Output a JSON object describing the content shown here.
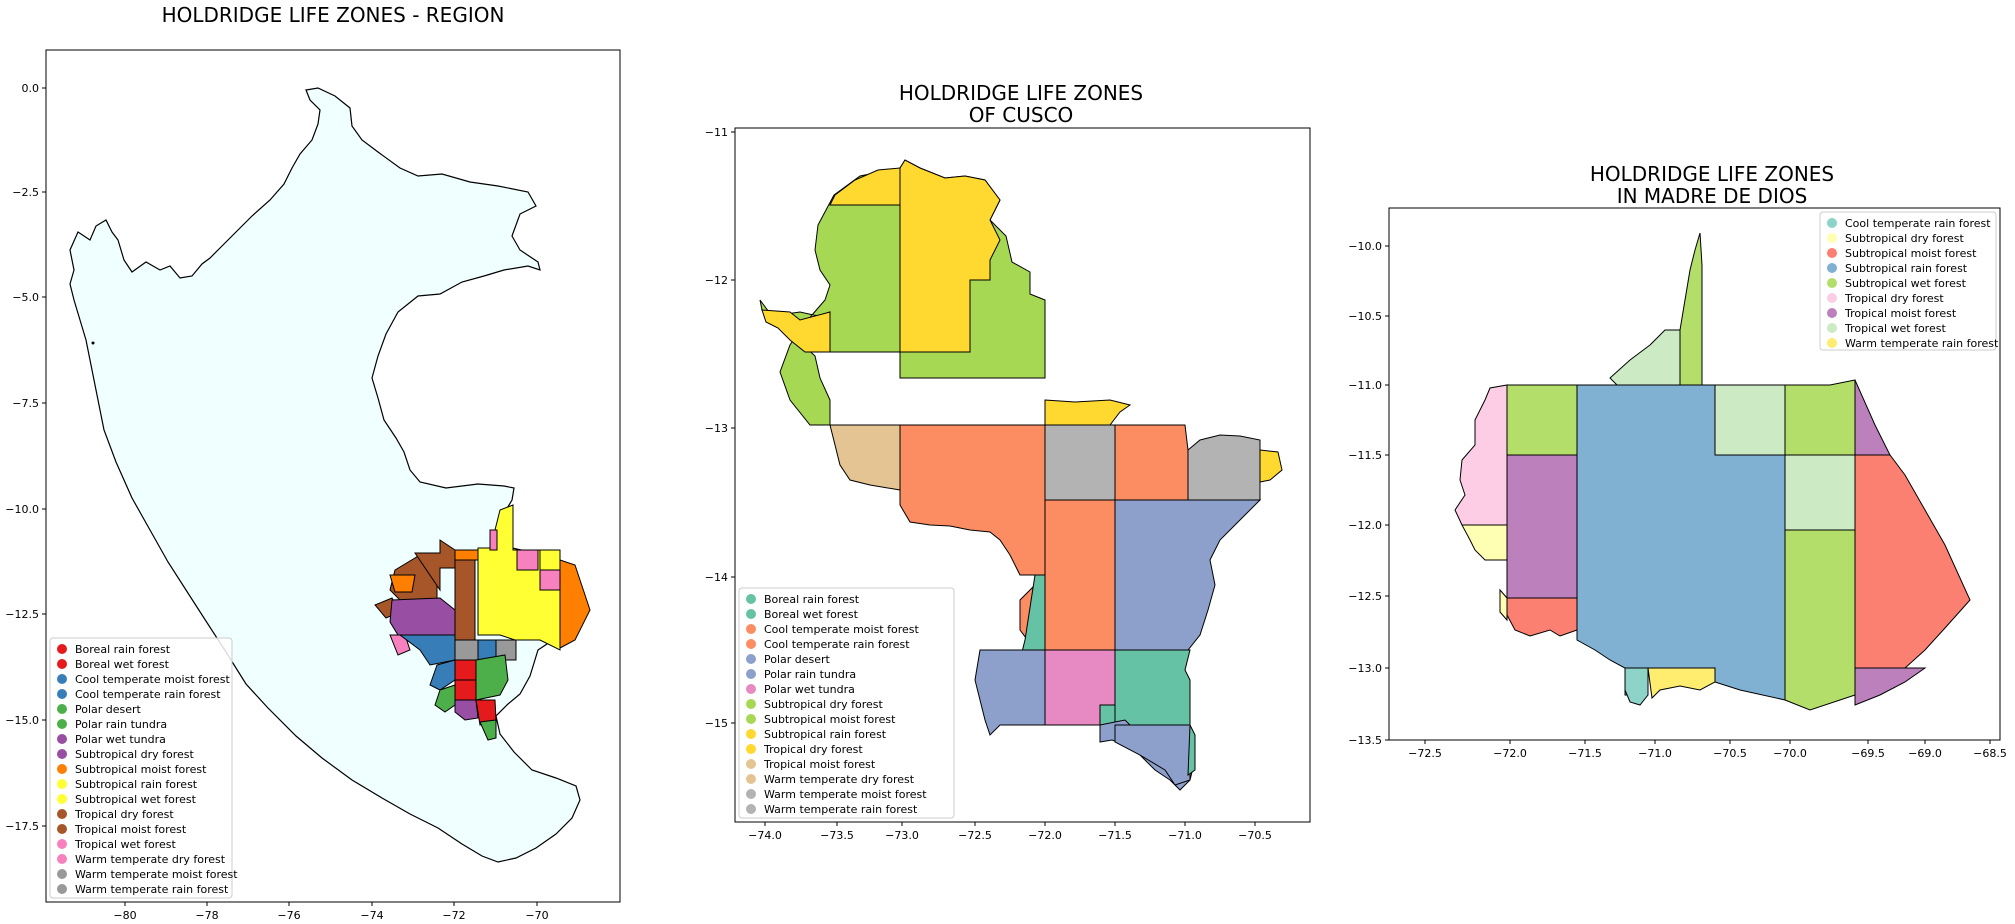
{
  "maps": [
    {
      "title_lines": [
        "HOLDRIDGE LIFE ZONES - REGION"
      ],
      "x_ticks": [
        "−80",
        "−78",
        "−76",
        "−74",
        "−72",
        "−70"
      ],
      "y_ticks": [
        "0.0",
        "−2.5",
        "−5.0",
        "−7.5",
        "−10.0",
        "−12.5",
        "−15.0",
        "−17.5"
      ],
      "legend": [
        {
          "label": "Boreal rain forest",
          "color": "#e41a1c"
        },
        {
          "label": "Boreal wet forest",
          "color": "#e41a1c"
        },
        {
          "label": "Cool temperate moist forest",
          "color": "#377eb8"
        },
        {
          "label": "Cool temperate rain forest",
          "color": "#377eb8"
        },
        {
          "label": "Polar desert",
          "color": "#4daf4a"
        },
        {
          "label": "Polar rain tundra",
          "color": "#4daf4a"
        },
        {
          "label": "Polar wet tundra",
          "color": "#984ea3"
        },
        {
          "label": "Subtropical dry forest",
          "color": "#984ea3"
        },
        {
          "label": "Subtropical moist forest",
          "color": "#ff7f00"
        },
        {
          "label": "Subtropical rain forest",
          "color": "#ffff33"
        },
        {
          "label": "Subtropical wet forest",
          "color": "#ffff33"
        },
        {
          "label": "Tropical dry forest",
          "color": "#a65628"
        },
        {
          "label": "Tropical moist forest",
          "color": "#a65628"
        },
        {
          "label": "Tropical wet forest",
          "color": "#f781bf"
        },
        {
          "label": "Warm temperate dry forest",
          "color": "#f781bf"
        },
        {
          "label": "Warm temperate moist forest",
          "color": "#999999"
        },
        {
          "label": "Warm temperate rain forest",
          "color": "#999999"
        }
      ],
      "background_fill": "#f0ffff"
    },
    {
      "title_lines": [
        "HOLDRIDGE LIFE ZONES",
        "OF CUSCO"
      ],
      "x_ticks": [
        "−74.0",
        "−73.5",
        "−73.0",
        "−72.5",
        "−72.0",
        "−71.5",
        "−71.0",
        "−70.5"
      ],
      "y_ticks": [
        "−11",
        "−12",
        "−13",
        "−14",
        "−15"
      ],
      "legend": [
        {
          "label": "Boreal rain forest",
          "color": "#66c2a5"
        },
        {
          "label": "Boreal wet forest",
          "color": "#66c2a5"
        },
        {
          "label": "Cool temperate moist forest",
          "color": "#fc8d62"
        },
        {
          "label": "Cool temperate rain forest",
          "color": "#fc8d62"
        },
        {
          "label": "Polar desert",
          "color": "#8da0cb"
        },
        {
          "label": "Polar rain tundra",
          "color": "#8da0cb"
        },
        {
          "label": "Polar wet tundra",
          "color": "#e78ac3"
        },
        {
          "label": "Subtropical dry forest",
          "color": "#a6d854"
        },
        {
          "label": "Subtropical moist forest",
          "color": "#a6d854"
        },
        {
          "label": "Subtropical rain forest",
          "color": "#ffd92f"
        },
        {
          "label": "Tropical dry forest",
          "color": "#ffd92f"
        },
        {
          "label": "Tropical moist forest",
          "color": "#e5c494"
        },
        {
          "label": "Warm temperate dry forest",
          "color": "#e5c494"
        },
        {
          "label": "Warm temperate moist forest",
          "color": "#b3b3b3"
        },
        {
          "label": "Warm temperate rain forest",
          "color": "#b3b3b3"
        }
      ]
    },
    {
      "title_lines": [
        "HOLDRIDGE LIFE ZONES",
        "IN MADRE DE DIOS"
      ],
      "x_ticks": [
        "−72.5",
        "−72.0",
        "−71.5",
        "−71.0",
        "−70.5",
        "−70.0",
        "−69.5",
        "−69.0",
        "−68.5"
      ],
      "y_ticks": [
        "−10.0",
        "−10.5",
        "−11.0",
        "−11.5",
        "−12.0",
        "−12.5",
        "−13.0",
        "−13.5"
      ],
      "legend": [
        {
          "label": "Cool temperate rain forest",
          "color": "#8dd3c7"
        },
        {
          "label": "Subtropical dry forest",
          "color": "#ffffb3"
        },
        {
          "label": "Subtropical moist forest",
          "color": "#fb8072"
        },
        {
          "label": "Subtropical rain forest",
          "color": "#80b1d3"
        },
        {
          "label": "Subtropical wet forest",
          "color": "#b3de69"
        },
        {
          "label": "Tropical dry forest",
          "color": "#fccde5"
        },
        {
          "label": "Tropical moist forest",
          "color": "#bc80bd"
        },
        {
          "label": "Tropical wet forest",
          "color": "#ccebc5"
        },
        {
          "label": "Warm temperate rain forest",
          "color": "#ffed6f"
        }
      ]
    }
  ]
}
